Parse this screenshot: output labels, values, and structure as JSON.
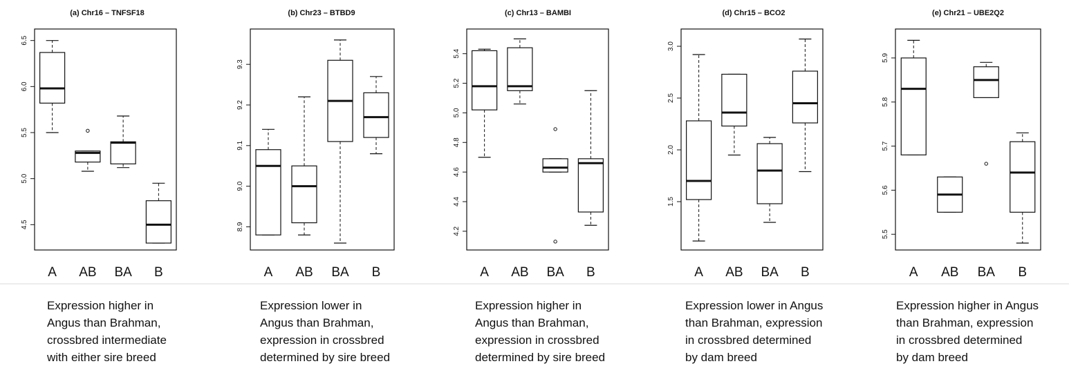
{
  "chart_data": [
    {
      "type": "boxplot",
      "title": "(a) Chr16 – TNFSF18",
      "categories": [
        "A",
        "AB",
        "BA",
        "B"
      ],
      "ylim": [
        4.3,
        6.55
      ],
      "yticks": [
        4.5,
        5.0,
        5.5,
        6.0,
        6.5
      ],
      "ytick_labels": [
        "4.5",
        "5.0",
        "5.5",
        "6.0",
        "6.5"
      ],
      "boxes": [
        {
          "min": 5.5,
          "q1": 5.82,
          "median": 5.98,
          "q3": 6.37,
          "max": 6.5,
          "outliers": []
        },
        {
          "min": 5.08,
          "q1": 5.18,
          "median": 5.28,
          "q3": 5.3,
          "max": 5.3,
          "outliers": [
            5.52
          ]
        },
        {
          "min": 5.12,
          "q1": 5.16,
          "median": 5.39,
          "q3": 5.4,
          "max": 5.68,
          "outliers": []
        },
        {
          "min": 4.3,
          "q1": 4.3,
          "median": 4.5,
          "q3": 4.76,
          "max": 4.95,
          "outliers": []
        }
      ],
      "caption": [
        "Expression higher in",
        "Angus than Brahman,",
        "crossbred intermediate",
        "with either sire breed"
      ]
    },
    {
      "type": "boxplot",
      "title": "(b) Chr23 – BTBD9",
      "categories": [
        "A",
        "AB",
        "BA",
        "B"
      ],
      "ylim": [
        8.86,
        9.37
      ],
      "yticks": [
        8.9,
        9.0,
        9.1,
        9.2,
        9.3
      ],
      "ytick_labels": [
        "8.9",
        "9.0",
        "9.1",
        "9.2",
        "9.3"
      ],
      "boxes": [
        {
          "min": 8.88,
          "q1": 8.88,
          "median": 9.05,
          "q3": 9.09,
          "max": 9.14,
          "outliers": []
        },
        {
          "min": 8.88,
          "q1": 8.91,
          "median": 9.0,
          "q3": 9.05,
          "max": 9.22,
          "outliers": []
        },
        {
          "min": 8.86,
          "q1": 9.11,
          "median": 9.21,
          "q3": 9.31,
          "max": 9.36,
          "outliers": []
        },
        {
          "min": 9.08,
          "q1": 9.12,
          "median": 9.17,
          "q3": 9.23,
          "max": 9.27,
          "outliers": []
        }
      ],
      "caption": [
        "Expression lower in",
        "Angus than Brahman,",
        "expression in crossbred",
        "determined by sire breed"
      ]
    },
    {
      "type": "boxplot",
      "title": "(c) Chr13 – BAMBI",
      "categories": [
        "A",
        "AB",
        "BA",
        "B"
      ],
      "ylim": [
        4.12,
        5.52
      ],
      "yticks": [
        4.2,
        4.4,
        4.6,
        4.8,
        5.0,
        5.2,
        5.4
      ],
      "ytick_labels": [
        "4.2",
        "4.4",
        "4.6",
        "4.8",
        "5.0",
        "5.2",
        "5.4"
      ],
      "boxes": [
        {
          "min": 4.7,
          "q1": 5.02,
          "median": 5.18,
          "q3": 5.42,
          "max": 5.43,
          "outliers": []
        },
        {
          "min": 5.06,
          "q1": 5.15,
          "median": 5.18,
          "q3": 5.44,
          "max": 5.5,
          "outliers": []
        },
        {
          "min": 4.6,
          "q1": 4.6,
          "median": 4.63,
          "q3": 4.69,
          "max": 4.69,
          "outliers": [
            4.89,
            4.13
          ]
        },
        {
          "min": 4.24,
          "q1": 4.33,
          "median": 4.66,
          "q3": 4.69,
          "max": 5.15,
          "outliers": []
        }
      ],
      "caption": [
        "Expression higher in",
        "Angus than Brahman,",
        "expression in crossbred",
        "determined by sire breed"
      ]
    },
    {
      "type": "boxplot",
      "title": "(d) Chr15 – BCO2",
      "categories": [
        "A",
        "AB",
        "BA",
        "B"
      ],
      "ylim": [
        1.1,
        3.1
      ],
      "yticks": [
        1.5,
        2.0,
        2.5,
        3.0
      ],
      "ytick_labels": [
        "1.5",
        "2.0",
        "2.5",
        "3.0"
      ],
      "boxes": [
        {
          "min": 1.12,
          "q1": 1.52,
          "median": 1.7,
          "q3": 2.28,
          "max": 2.92,
          "outliers": []
        },
        {
          "min": 1.95,
          "q1": 2.23,
          "median": 2.36,
          "q3": 2.73,
          "max": 2.73,
          "outliers": []
        },
        {
          "min": 1.3,
          "q1": 1.48,
          "median": 1.8,
          "q3": 2.06,
          "max": 2.12,
          "outliers": []
        },
        {
          "min": 1.79,
          "q1": 2.26,
          "median": 2.45,
          "q3": 2.76,
          "max": 3.07,
          "outliers": []
        }
      ],
      "caption": [
        "Expression lower in Angus",
        "than Brahman, expression",
        "in crossbred determined",
        "by dam breed"
      ]
    },
    {
      "type": "boxplot",
      "title": "(e) Chr21 – UBE2Q2",
      "categories": [
        "A",
        "AB",
        "BA",
        "B"
      ],
      "ylim": [
        5.48,
        5.95
      ],
      "yticks": [
        5.5,
        5.6,
        5.7,
        5.8,
        5.9
      ],
      "ytick_labels": [
        "5.5",
        "5.6",
        "5.7",
        "5.8",
        "5.9"
      ],
      "boxes": [
        {
          "min": 5.68,
          "q1": 5.68,
          "median": 5.83,
          "q3": 5.9,
          "max": 5.94,
          "outliers": []
        },
        {
          "min": 5.55,
          "q1": 5.55,
          "median": 5.59,
          "q3": 5.63,
          "max": 5.63,
          "outliers": []
        },
        {
          "min": 5.81,
          "q1": 5.81,
          "median": 5.85,
          "q3": 5.88,
          "max": 5.89,
          "outliers": [
            5.66
          ]
        },
        {
          "min": 5.48,
          "q1": 5.55,
          "median": 5.64,
          "q3": 5.71,
          "max": 5.73,
          "outliers": []
        }
      ],
      "caption": [
        "Expression higher in Angus",
        "than Brahman, expression",
        "in crossbred determined",
        "by dam breed"
      ]
    }
  ]
}
